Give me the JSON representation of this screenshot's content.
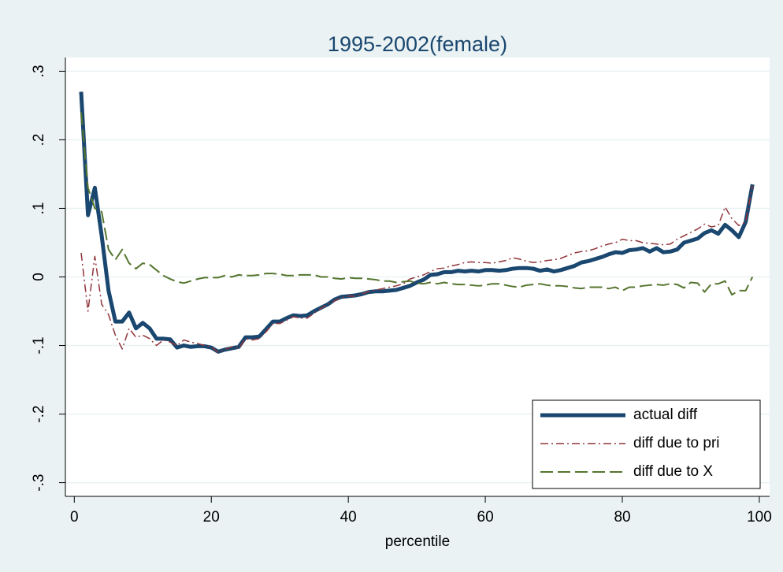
{
  "chart_data": {
    "type": "line",
    "title": "1995-2002(female)",
    "x_label": "percentile",
    "x": [
      1,
      2,
      3,
      4,
      5,
      6,
      7,
      8,
      9,
      10,
      11,
      12,
      13,
      14,
      15,
      16,
      17,
      18,
      19,
      20,
      21,
      22,
      23,
      24,
      25,
      26,
      27,
      28,
      29,
      30,
      31,
      32,
      33,
      34,
      35,
      36,
      37,
      38,
      39,
      40,
      41,
      42,
      43,
      44,
      45,
      46,
      47,
      48,
      49,
      50,
      51,
      52,
      53,
      54,
      55,
      56,
      57,
      58,
      59,
      60,
      61,
      62,
      63,
      64,
      65,
      66,
      67,
      68,
      69,
      70,
      71,
      72,
      73,
      74,
      75,
      76,
      77,
      78,
      79,
      80,
      81,
      82,
      83,
      84,
      85,
      86,
      87,
      88,
      89,
      90,
      91,
      92,
      93,
      94,
      95,
      96,
      97,
      98,
      99
    ],
    "series": [
      {
        "name": "actual diff",
        "color": "#1a476f",
        "style": "solid",
        "width": 5,
        "values": [
          0.27,
          0.09,
          0.13,
          0.06,
          -0.02,
          -0.065,
          -0.065,
          -0.052,
          -0.075,
          -0.067,
          -0.075,
          -0.09,
          -0.09,
          -0.091,
          -0.103,
          -0.1,
          -0.102,
          -0.101,
          -0.101,
          -0.103,
          -0.109,
          -0.106,
          -0.104,
          -0.102,
          -0.088,
          -0.088,
          -0.087,
          -0.076,
          -0.065,
          -0.065,
          -0.06,
          -0.056,
          -0.057,
          -0.056,
          -0.05,
          -0.045,
          -0.04,
          -0.033,
          -0.029,
          -0.028,
          -0.027,
          -0.025,
          -0.022,
          -0.021,
          -0.021,
          -0.02,
          -0.019,
          -0.016,
          -0.013,
          -0.008,
          -0.004,
          0.003,
          0.004,
          0.007,
          0.007,
          0.009,
          0.008,
          0.009,
          0.008,
          0.01,
          0.01,
          0.009,
          0.01,
          0.012,
          0.013,
          0.013,
          0.012,
          0.009,
          0.011,
          0.008,
          0.01,
          0.013,
          0.016,
          0.021,
          0.023,
          0.026,
          0.029,
          0.033,
          0.036,
          0.035,
          0.039,
          0.04,
          0.042,
          0.037,
          0.042,
          0.036,
          0.037,
          0.04,
          0.05,
          0.053,
          0.056,
          0.064,
          0.068,
          0.063,
          0.076,
          0.068,
          0.058,
          0.08,
          0.135
        ]
      },
      {
        "name": "diff due to pri",
        "color": "#90353b",
        "style": "dashdot",
        "width": 1.5,
        "values": [
          0.035,
          -0.05,
          0.03,
          -0.04,
          -0.055,
          -0.085,
          -0.105,
          -0.075,
          -0.088,
          -0.085,
          -0.09,
          -0.1,
          -0.092,
          -0.095,
          -0.1,
          -0.092,
          -0.095,
          -0.097,
          -0.1,
          -0.102,
          -0.11,
          -0.106,
          -0.102,
          -0.104,
          -0.09,
          -0.092,
          -0.09,
          -0.08,
          -0.068,
          -0.068,
          -0.063,
          -0.058,
          -0.06,
          -0.06,
          -0.053,
          -0.046,
          -0.04,
          -0.035,
          -0.03,
          -0.028,
          -0.028,
          -0.025,
          -0.021,
          -0.019,
          -0.017,
          -0.015,
          -0.013,
          -0.01,
          -0.003,
          0,
          0.003,
          0.008,
          0.012,
          0.013,
          0.016,
          0.018,
          0.021,
          0.022,
          0.021,
          0.021,
          0.02,
          0.022,
          0.024,
          0.028,
          0.026,
          0.023,
          0.021,
          0.022,
          0.024,
          0.025,
          0.027,
          0.031,
          0.035,
          0.037,
          0.038,
          0.041,
          0.045,
          0.048,
          0.05,
          0.055,
          0.053,
          0.053,
          0.05,
          0.049,
          0.048,
          0.047,
          0.048,
          0.055,
          0.06,
          0.065,
          0.07,
          0.077,
          0.073,
          0.075,
          0.102,
          0.085,
          0.075,
          0.08,
          0.133
        ]
      },
      {
        "name": "diff due to X",
        "color": "#55752f",
        "style": "longdash",
        "width": 2,
        "values": [
          0.24,
          0.13,
          0.1,
          0.095,
          0.04,
          0.025,
          0.04,
          0.02,
          0.012,
          0.02,
          0.018,
          0.01,
          0.002,
          -0.003,
          -0.007,
          -0.009,
          -0.006,
          -0.003,
          -0.001,
          -0.001,
          -0.001,
          0.002,
          0,
          0.003,
          0.002,
          0.002,
          0.003,
          0.005,
          0.005,
          0.004,
          0.002,
          0.002,
          0.003,
          0.003,
          0.003,
          0,
          0,
          -0.002,
          -0.003,
          -0.001,
          -0.002,
          -0.002,
          -0.003,
          -0.004,
          -0.006,
          -0.006,
          -0.008,
          -0.007,
          -0.006,
          -0.009,
          -0.01,
          -0.008,
          -0.01,
          -0.008,
          -0.01,
          -0.011,
          -0.011,
          -0.012,
          -0.013,
          -0.012,
          -0.01,
          -0.01,
          -0.012,
          -0.014,
          -0.015,
          -0.012,
          -0.011,
          -0.01,
          -0.012,
          -0.013,
          -0.013,
          -0.014,
          -0.016,
          -0.017,
          -0.015,
          -0.015,
          -0.015,
          -0.017,
          -0.015,
          -0.02,
          -0.015,
          -0.015,
          -0.013,
          -0.012,
          -0.011,
          -0.012,
          -0.01,
          -0.011,
          -0.016,
          -0.008,
          -0.009,
          -0.022,
          -0.01,
          -0.01,
          -0.006,
          -0.026,
          -0.02,
          -0.02,
          0
        ]
      }
    ],
    "xlim": [
      -1.3,
      101.5
    ],
    "xticks": [
      0,
      20,
      40,
      60,
      80,
      100
    ],
    "ylim": [
      -0.32,
      0.32
    ],
    "yticks": [
      {
        "value": -0.3,
        "label": "-.3"
      },
      {
        "value": -0.2,
        "label": "-.2"
      },
      {
        "value": -0.1,
        "label": "-.1"
      },
      0,
      {
        "value": 0.1,
        "label": ".1"
      },
      {
        "value": 0.2,
        "label": ".2"
      },
      {
        "value": 0.3,
        "label": ".3"
      }
    ],
    "grid": true,
    "legend": "bottom-right"
  }
}
